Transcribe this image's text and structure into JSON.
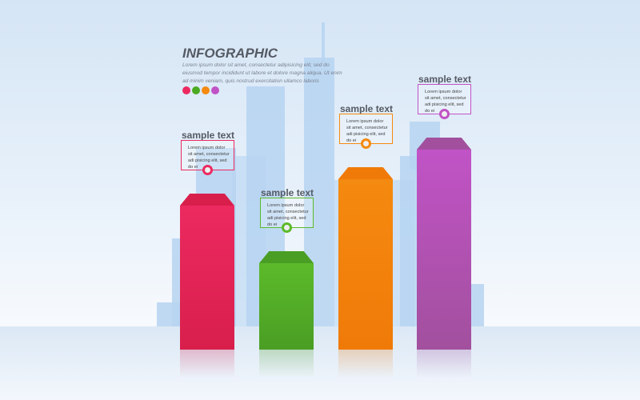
{
  "header": {
    "title": "INFOGRAPHIC",
    "subtitle": "Lorem ipsum dolor sit amet, consectetur adipisicing elit, sed do eiusmod tempor incididunt ut labore et dolore magna aliqua. Ut enim ad minim veniam, quis nostrud exercitation ullamco laboris"
  },
  "colors": [
    "#ec2a60",
    "#4aaa22",
    "#f58a10",
    "#c153c6"
  ],
  "items": [
    {
      "label": "sample text",
      "text": "Lorem ipsum dolor sit amet, consectetur adi pisicing elit, sed do ei",
      "color": "#ec2a60",
      "top": "#d81f4c",
      "level": 0.72
    },
    {
      "label": "sample text",
      "text": "Lorem ipsum dolor sit amet, consectetur adi pisicing elit, sed do ei",
      "color": "#5cba2a",
      "top": "#4a9e24",
      "level": 0.43
    },
    {
      "label": "sample text",
      "text": "Lorem ipsum dolor sit amet, consectetur adi pisicing elit, sed do ei",
      "color": "#f58a10",
      "top": "#f07a08",
      "level": 0.85
    },
    {
      "label": "sample text",
      "text": "Lorem ipsum dolor sit amet, consectetur adi pisicing elit, sed do ei",
      "color": "#c153c6",
      "top": "#a2509e",
      "level": 1.0
    }
  ]
}
